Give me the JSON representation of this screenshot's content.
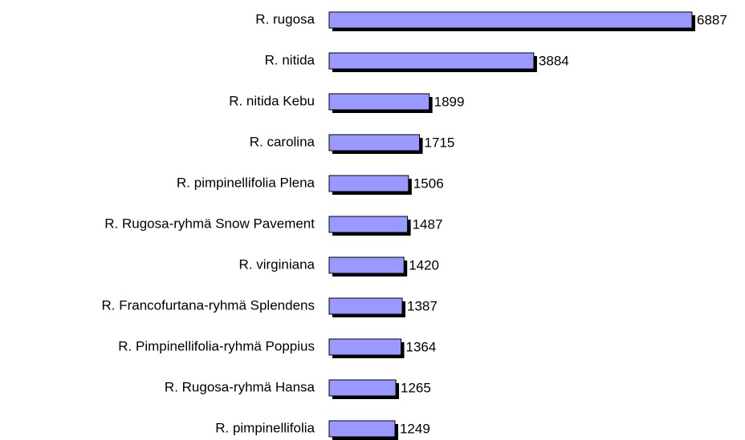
{
  "chart_data": {
    "type": "hbar",
    "categories": [
      "R. rugosa",
      "R. nitida",
      "R. nitida Kebu",
      "R. carolina",
      "R. pimpinellifolia Plena",
      "R. Rugosa-ryhmä Snow Pavement",
      "R. virginiana",
      "R. Francofurtana-ryhmä Splendens",
      "R. Pimpinellifolia-ryhmä Poppius",
      "R. Rugosa-ryhmä Hansa",
      "R. pimpinellifolia"
    ],
    "values": [
      6887,
      3884,
      1899,
      1715,
      1506,
      1487,
      1420,
      1387,
      1364,
      1265,
      1249
    ],
    "color": "#9999ff",
    "xlim": [
      0,
      6887
    ]
  }
}
